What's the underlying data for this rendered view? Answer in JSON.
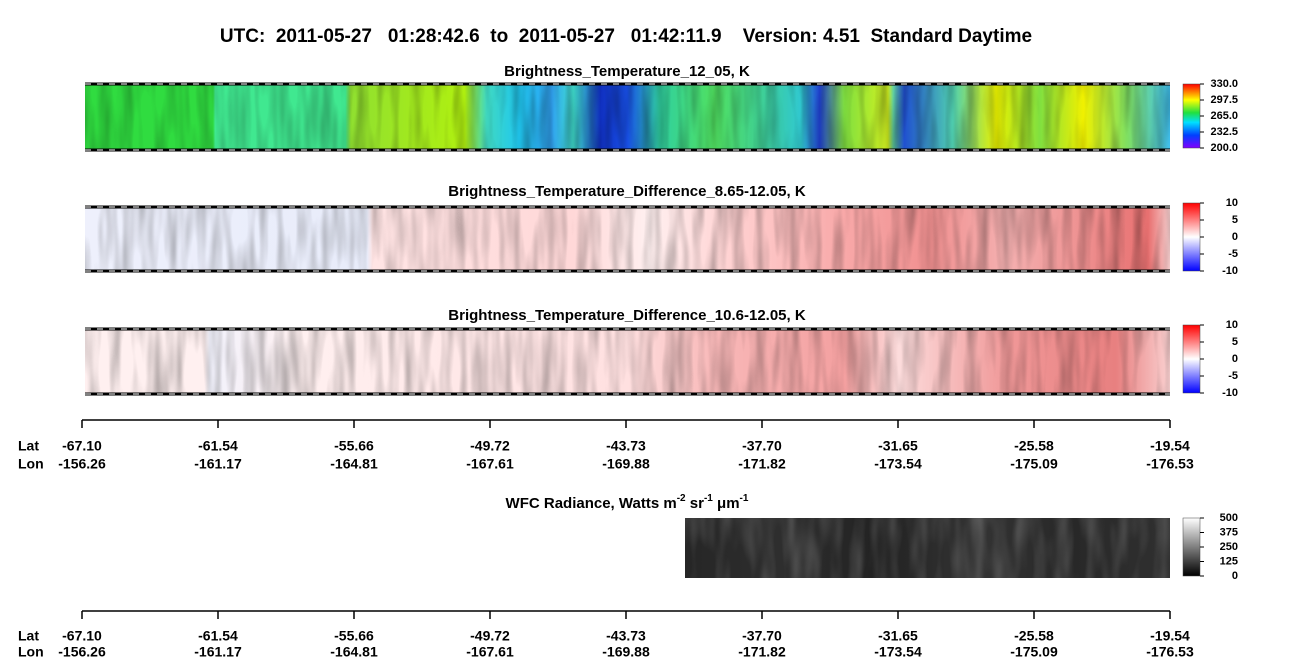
{
  "title": "UTC:  2011-05-27   01:28:42.6  to  2011-05-27   01:42:11.9    Version: 4.51  Standard Daytime",
  "chart_data": [
    {
      "type": "heatmap",
      "title": "Brightness_Temperature_12_05, K",
      "colormap": "rainbow",
      "zlim": [
        200,
        330
      ],
      "zticks": [
        {
          "value": 200,
          "label": "200.0"
        },
        232.5,
        {
          "value": 265,
          "label": "265.0"
        },
        297.5,
        {
          "value": 330,
          "label": "330.0"
        }
      ]
    },
    {
      "type": "heatmap",
      "title": "Brightness_Temperature_Difference_8.65-12.05, K",
      "colormap": "bwr",
      "zlim": [
        -10,
        10
      ],
      "zticks": [
        -10,
        -5,
        0,
        5,
        10
      ]
    },
    {
      "type": "heatmap",
      "title": "Brightness_Temperature_Difference_10.6-12.05, K",
      "colormap": "bwr",
      "zlim": [
        -10,
        10
      ],
      "zticks": [
        -10,
        -5,
        0,
        5,
        10
      ]
    },
    {
      "type": "heatmap",
      "title_parts": [
        "WFC Radiance, Watts m",
        "-2",
        " sr",
        "-1",
        " μm",
        "-1"
      ],
      "colormap": "gray",
      "zlim": [
        0,
        500
      ],
      "zticks": [
        0,
        125,
        250,
        375,
        500
      ]
    }
  ],
  "x_axis": {
    "row_labels": [
      "Lat",
      "Lon"
    ],
    "lat": [
      {
        "value": -67.1,
        "label": "-67.10"
      },
      -61.54,
      -55.66,
      -49.72,
      -43.73,
      {
        "value": -37.7,
        "label": "-37.70"
      },
      -31.65,
      -25.58,
      -19.54
    ],
    "lon": [
      -156.26,
      -161.17,
      -164.81,
      -167.61,
      -169.88,
      -171.82,
      -173.54,
      -175.09,
      -176.53
    ]
  }
}
